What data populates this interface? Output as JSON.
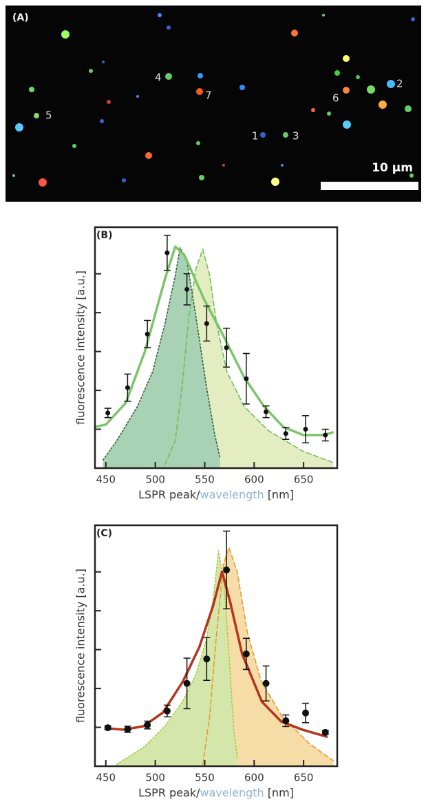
{
  "panel_a": {
    "label": "(A)",
    "particle_labels": [
      "1",
      "2",
      "3",
      "4",
      "5",
      "6",
      "7"
    ],
    "scalebar": "10 µm"
  },
  "chart_data": [
    {
      "type": "line",
      "label": "(B)",
      "ylabel": "fluorescence intensity [a.u.]",
      "xlabel": [
        "LSPR peak/",
        "wavelength",
        "[nm]"
      ],
      "xlabel_colors": [
        "#333333",
        "#8fb3d0",
        "#333333"
      ],
      "xlim": [
        439,
        684
      ],
      "ylim": [
        0,
        6.2
      ],
      "xticks": [
        450,
        500,
        550,
        600,
        650
      ],
      "yticks": [
        1,
        2,
        3,
        4,
        5
      ],
      "series": [
        {
          "style": "dashed",
          "color": "#6fbf5a",
          "fill": "#e4edc2",
          "x": [
            509.8,
            520.2,
            527.2,
            534.1,
            541.1,
            548.1,
            555.0,
            562.0,
            572.4,
            589.8,
            614.1,
            648.9,
            680.2
          ],
          "values": [
            0.09,
            0.71,
            2.13,
            3.9,
            5.14,
            5.63,
            4.96,
            3.72,
            2.48,
            1.59,
            0.97,
            0.44,
            0.14
          ]
        },
        {
          "style": "dotted",
          "color": "#2e5e3a",
          "fill": "#a9d1b4",
          "x": [
            447.2,
            461.1,
            482.0,
            497.3,
            509.8,
            520.2,
            525.1,
            532.1,
            541.1,
            551.5,
            559.9,
            565.4
          ],
          "values": [
            0.21,
            0.71,
            1.59,
            2.48,
            3.72,
            4.96,
            5.67,
            5.31,
            3.9,
            2.13,
            0.89,
            0.27
          ]
        },
        {
          "style": "solid",
          "color": "#7cc46a",
          "x": [
            438.9,
            450,
            470.2,
            489.6,
            509.8,
            520.2,
            529.3,
            549.4,
            569.6,
            589.8,
            609.9,
            629.4,
            649.6,
            669.7,
            679.4
          ],
          "values": [
            1.06,
            1.12,
            1.68,
            3.01,
            4.87,
            5.7,
            5.49,
            4.34,
            3.37,
            2.34,
            1.59,
            1.06,
            0.85,
            0.85,
            0.92
          ]
        },
        {
          "style": "markers",
          "color": "#111111",
          "marker_size": 3.5,
          "x": [
            452,
            472,
            492,
            512,
            532,
            552,
            572,
            592,
            612,
            632,
            652,
            672
          ],
          "values": [
            1.42,
            2.07,
            3.45,
            5.54,
            4.6,
            3.72,
            3.1,
            2.3,
            1.45,
            0.89,
            1.0,
            0.85
          ],
          "errors": [
            0.12,
            0.35,
            0.35,
            0.45,
            0.4,
            0.45,
            0.5,
            0.65,
            0.15,
            0.15,
            0.35,
            0.15
          ]
        }
      ]
    },
    {
      "type": "line",
      "label": "(C)",
      "ylabel": "fluorescence intensity [a.u.]",
      "xlabel": [
        "LSPR peak/",
        "wavelength",
        "[nm]"
      ],
      "xlabel_colors": [
        "#333333",
        "#8fb3d0",
        "#333333"
      ],
      "xlim": [
        439,
        684
      ],
      "ylim": [
        0,
        6.2
      ],
      "xticks": [
        450,
        500,
        550,
        600,
        650
      ],
      "yticks": [
        1,
        2,
        3,
        4,
        5
      ],
      "series": [
        {
          "style": "dashed",
          "color": "#e89a2a",
          "fill": "#f6dca6",
          "x": [
            548.1,
            555.0,
            562.0,
            568.9,
            574.5,
            582.8,
            593.3,
            607.2,
            628.0,
            655.8,
            680.2
          ],
          "values": [
            0.05,
            1.29,
            3.42,
            5.19,
            5.63,
            5.01,
            3.42,
            2.18,
            1.29,
            0.58,
            0.14
          ]
        },
        {
          "style": "dotted",
          "color": "#a6cc3c",
          "fill": "#d5e6ab",
          "x": [
            461.1,
            488.9,
            509.8,
            527.2,
            541.1,
            551.5,
            558.5,
            564.0,
            569.6,
            574.5,
            579.3,
            582.8
          ],
          "values": [
            0.05,
            0.5,
            1.03,
            1.65,
            2.36,
            3.24,
            4.3,
            5.54,
            4.66,
            2.89,
            0.94,
            0.23
          ]
        },
        {
          "style": "solid",
          "color": "#b5341c",
          "x": [
            454.2,
            468.1,
            488.2,
            507.7,
            527.9,
            544.6,
            558.5,
            567.5,
            575.8,
            587.7,
            607.8,
            627.3,
            648.8,
            673.2
          ],
          "values": [
            0.97,
            0.94,
            1.03,
            1.38,
            2.18,
            3.07,
            4.13,
            5.01,
            4.22,
            2.9,
            1.66,
            1.15,
            0.94,
            0.76
          ]
        },
        {
          "style": "markers",
          "color": "#111111",
          "marker_size": 5,
          "x": [
            452,
            472,
            492,
            512,
            532,
            552,
            572,
            592,
            612,
            632,
            652,
            672
          ],
          "values": [
            0.99,
            0.95,
            1.06,
            1.42,
            2.13,
            2.76,
            5.05,
            2.89,
            2.13,
            1.17,
            1.37,
            0.87
          ],
          "errors": [
            0.05,
            0.08,
            0.1,
            0.15,
            0.65,
            0.55,
            1.0,
            0.4,
            0.45,
            0.15,
            0.25,
            0.05
          ]
        }
      ]
    }
  ]
}
